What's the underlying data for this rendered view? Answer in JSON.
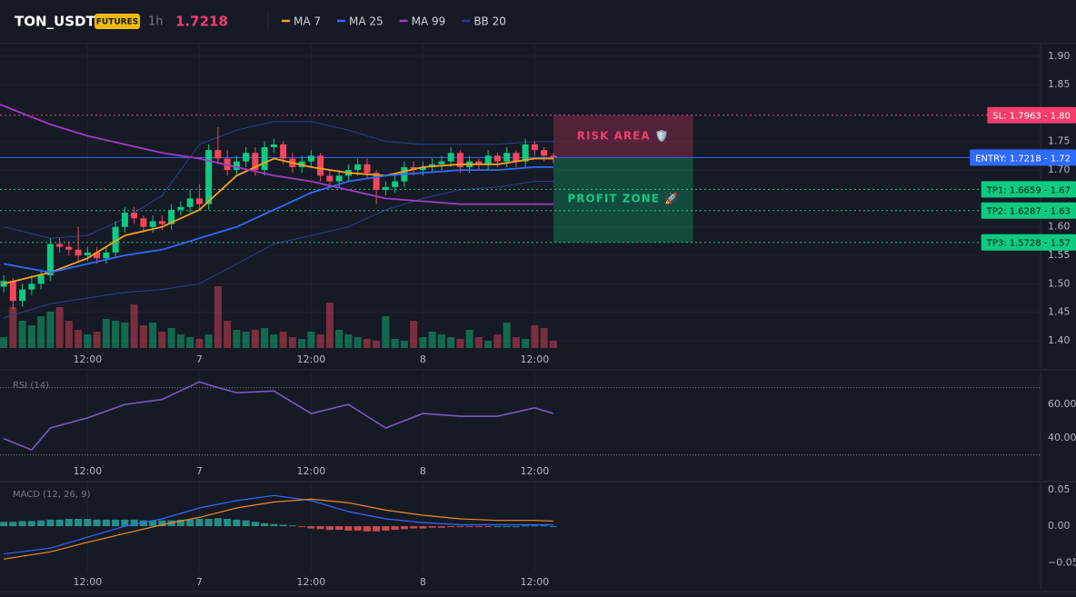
{
  "header": {
    "symbol": "TON_USDT",
    "badge": "FUTURES",
    "interval": "1h",
    "price": "1.7218"
  },
  "chart_data": [
    {
      "type": "candlestick",
      "xlim": [
        2.6,
        114.3
      ],
      "ylim": [
        1.384,
        1.922
      ],
      "xticks": [
        {
          "value": 12,
          "label": "12:00"
        },
        {
          "value": 24,
          "label": "7"
        },
        {
          "value": 36,
          "label": "12:00"
        },
        {
          "value": 48,
          "label": "8"
        },
        {
          "value": 60,
          "label": "12:00"
        }
      ],
      "yticks": [
        {
          "value": 1.9,
          "label": "1.90"
        },
        {
          "value": 1.85,
          "label": "1.85"
        },
        {
          "value": 1.75,
          "label": "1.75"
        },
        {
          "value": 1.7,
          "label": "1.70"
        },
        {
          "value": 1.6,
          "label": "1.60"
        },
        {
          "value": 1.55,
          "label": "1.55"
        },
        {
          "value": 1.5,
          "label": "1.50"
        },
        {
          "value": 1.45,
          "label": "1.45"
        },
        {
          "value": 1.4,
          "label": "1.40"
        }
      ],
      "grid": true,
      "up_color": "#0ecb81",
      "down_color": "#f6465d",
      "x": [
        3,
        4,
        5,
        6,
        7,
        8,
        9,
        10,
        11,
        12,
        13,
        14,
        15,
        16,
        17,
        18,
        19,
        20,
        21,
        22,
        23,
        24,
        25,
        26,
        27,
        28,
        29,
        30,
        31,
        32,
        33,
        34,
        35,
        36,
        37,
        38,
        39,
        40,
        41,
        42,
        43,
        44,
        45,
        46,
        47,
        48,
        49,
        50,
        51,
        52,
        53,
        54,
        55,
        56,
        57,
        58,
        59,
        60,
        61,
        62
      ],
      "open": [
        1.495,
        1.505,
        1.47,
        1.49,
        1.5,
        1.515,
        1.57,
        1.565,
        1.56,
        1.55,
        1.555,
        1.545,
        1.555,
        1.6,
        1.625,
        1.615,
        1.6,
        1.61,
        1.605,
        1.63,
        1.635,
        1.65,
        1.64,
        1.735,
        1.72,
        1.7,
        1.715,
        1.73,
        1.7,
        1.74,
        1.745,
        1.72,
        1.705,
        1.715,
        1.725,
        1.69,
        1.68,
        1.69,
        1.7,
        1.71,
        1.695,
        1.665,
        1.67,
        1.68,
        1.705,
        1.7,
        1.705,
        1.71,
        1.715,
        1.73,
        1.705,
        1.715,
        1.71,
        1.725,
        1.715,
        1.73,
        1.715,
        1.745,
        1.735,
        1.725
      ],
      "high": [
        1.515,
        1.51,
        1.5,
        1.515,
        1.525,
        1.58,
        1.58,
        1.575,
        1.6,
        1.565,
        1.565,
        1.565,
        1.61,
        1.635,
        1.635,
        1.62,
        1.62,
        1.62,
        1.64,
        1.645,
        1.665,
        1.675,
        1.745,
        1.775,
        1.735,
        1.725,
        1.74,
        1.74,
        1.75,
        1.755,
        1.75,
        1.73,
        1.725,
        1.735,
        1.73,
        1.7,
        1.7,
        1.71,
        1.72,
        1.72,
        1.7,
        1.68,
        1.69,
        1.715,
        1.715,
        1.715,
        1.72,
        1.725,
        1.74,
        1.735,
        1.725,
        1.72,
        1.735,
        1.73,
        1.74,
        1.735,
        1.755,
        1.75,
        1.74,
        1.73
      ],
      "low": [
        1.485,
        1.455,
        1.46,
        1.48,
        1.49,
        1.505,
        1.555,
        1.55,
        1.54,
        1.54,
        1.535,
        1.535,
        1.545,
        1.59,
        1.605,
        1.59,
        1.59,
        1.595,
        1.595,
        1.62,
        1.625,
        1.63,
        1.63,
        1.71,
        1.69,
        1.69,
        1.705,
        1.69,
        1.69,
        1.73,
        1.71,
        1.695,
        1.695,
        1.705,
        1.68,
        1.67,
        1.67,
        1.68,
        1.69,
        1.685,
        1.64,
        1.655,
        1.66,
        1.67,
        1.69,
        1.69,
        1.695,
        1.7,
        1.705,
        1.695,
        1.695,
        1.7,
        1.7,
        1.705,
        1.705,
        1.705,
        1.705,
        1.725,
        1.715,
        1.712
      ],
      "close": [
        1.505,
        1.47,
        1.49,
        1.5,
        1.515,
        1.57,
        1.565,
        1.56,
        1.55,
        1.555,
        1.545,
        1.555,
        1.6,
        1.625,
        1.615,
        1.6,
        1.61,
        1.605,
        1.63,
        1.635,
        1.65,
        1.64,
        1.735,
        1.72,
        1.7,
        1.715,
        1.73,
        1.7,
        1.74,
        1.745,
        1.72,
        1.705,
        1.715,
        1.725,
        1.69,
        1.68,
        1.69,
        1.7,
        1.71,
        1.695,
        1.665,
        1.67,
        1.68,
        1.705,
        1.7,
        1.705,
        1.71,
        1.715,
        1.73,
        1.705,
        1.715,
        1.71,
        1.725,
        1.715,
        1.73,
        1.715,
        1.745,
        1.735,
        1.725,
        1.722
      ],
      "volume": [
        12,
        45,
        30,
        25,
        35,
        40,
        45,
        30,
        20,
        15,
        18,
        32,
        30,
        28,
        48,
        25,
        28,
        18,
        22,
        15,
        12,
        10,
        15,
        68,
        30,
        20,
        18,
        20,
        22,
        15,
        18,
        12,
        10,
        18,
        15,
        50,
        20,
        15,
        12,
        10,
        8,
        35,
        10,
        8,
        30,
        12,
        18,
        15,
        12,
        10,
        20,
        12,
        8,
        15,
        28,
        12,
        10,
        25,
        22,
        8
      ],
      "overlays": [
        {
          "name": "MA 7",
          "color": "#f7a21b",
          "x": [
            3,
            8,
            12,
            16,
            20,
            24,
            28,
            32,
            36,
            40,
            44,
            48,
            52,
            56,
            60,
            62
          ],
          "values": [
            1.5,
            1.52,
            1.545,
            1.585,
            1.6,
            1.63,
            1.69,
            1.72,
            1.705,
            1.695,
            1.69,
            1.705,
            1.71,
            1.71,
            1.72,
            1.72
          ]
        },
        {
          "name": "MA 25",
          "color": "#2f6bff",
          "x": [
            3,
            8,
            12,
            16,
            20,
            24,
            28,
            32,
            36,
            40,
            44,
            48,
            52,
            56,
            60,
            62
          ],
          "values": [
            1.535,
            1.52,
            1.535,
            1.55,
            1.56,
            1.58,
            1.6,
            1.63,
            1.66,
            1.68,
            1.69,
            1.695,
            1.7,
            1.7,
            1.705,
            1.705
          ]
        },
        {
          "name": "MA 99",
          "color": "#a23cc6",
          "x": [
            2.6,
            8,
            12,
            16,
            20,
            24,
            28,
            32,
            36,
            40,
            44,
            48,
            52,
            56,
            60,
            62
          ],
          "values": [
            1.815,
            1.78,
            1.76,
            1.745,
            1.73,
            1.72,
            1.705,
            1.69,
            1.68,
            1.665,
            1.65,
            1.645,
            1.64,
            1.64,
            1.64,
            1.64
          ]
        }
      ],
      "bands": {
        "name": "BB 20",
        "color": "#2a3f8f",
        "x": [
          3,
          8,
          12,
          16,
          20,
          24,
          28,
          32,
          36,
          40,
          44,
          48,
          52,
          56,
          60,
          62
        ],
        "upper": [
          1.6,
          1.58,
          1.585,
          1.615,
          1.655,
          1.745,
          1.77,
          1.785,
          1.785,
          1.77,
          1.75,
          1.745,
          1.745,
          1.745,
          1.75,
          1.75
        ],
        "lower": [
          1.44,
          1.465,
          1.475,
          1.485,
          1.49,
          1.5,
          1.535,
          1.57,
          1.585,
          1.6,
          1.63,
          1.65,
          1.665,
          1.67,
          1.68,
          1.68
        ]
      },
      "levels": [
        {
          "label": "SL: 1.7963 - 1.80",
          "value": 1.7963,
          "color": "#f23d6d",
          "style": "dotted"
        },
        {
          "label": "ENTRY: 1.7218 - 1.72",
          "value": 1.7218,
          "color": "#2f6bff",
          "style": "solid"
        },
        {
          "label": "TP1: 1.6659 - 1.67",
          "value": 1.6659,
          "color": "#0ecb81",
          "style": "dotted"
        },
        {
          "label": "TP2: 1.6287 - 1.63",
          "value": 1.6287,
          "color": "#0ecb81",
          "style": "dotted"
        },
        {
          "label": "TP3: 1.5728 - 1.57",
          "value": 1.5728,
          "color": "#0ecb81",
          "style": "dotted"
        }
      ],
      "zones": [
        {
          "label": "RISK AREA 🛡️",
          "from": 1.7963,
          "to": 1.7218,
          "x_from": 62,
          "x_to": 77,
          "color": "#f23d6d"
        },
        {
          "label": "PROFIT ZONE 🚀",
          "from": 1.7218,
          "to": 1.5728,
          "x_from": 62,
          "x_to": 77,
          "color": "#0ecb81"
        }
      ]
    },
    {
      "type": "line",
      "title": "RSI (14)",
      "xlim": [
        2.6,
        114.3
      ],
      "ylim": [
        26,
        79
      ],
      "xticks": [
        {
          "value": 12,
          "label": "12:00"
        },
        {
          "value": 24,
          "label": "7"
        },
        {
          "value": 36,
          "label": "12:00"
        },
        {
          "value": 48,
          "label": "8"
        },
        {
          "value": 60,
          "label": "12:00"
        }
      ],
      "yticks": [
        {
          "value": 60,
          "label": "60.00"
        },
        {
          "value": 40,
          "label": "40.00"
        }
      ],
      "bands": [
        70,
        30
      ],
      "series": [
        {
          "color": "#7e57c2",
          "x": [
            3,
            6,
            8,
            12,
            16,
            20,
            24,
            26,
            28,
            32,
            36,
            40,
            44,
            48,
            52,
            56,
            60,
            62
          ],
          "values": [
            39.7,
            33,
            46,
            52,
            60,
            63,
            73.5,
            70,
            67,
            68,
            54.6,
            60,
            46,
            54.6,
            53,
            53,
            58,
            54.6
          ]
        }
      ]
    },
    {
      "type": "macd",
      "title": "MACD (12, 26, 9)",
      "xlim": [
        2.6,
        114.3
      ],
      "ylim": [
        -0.062,
        0.061
      ],
      "xticks": [
        {
          "value": 12,
          "label": "12:00"
        },
        {
          "value": 24,
          "label": "7"
        },
        {
          "value": 36,
          "label": "12:00"
        },
        {
          "value": 48,
          "label": "8"
        },
        {
          "value": 60,
          "label": "12:00"
        }
      ],
      "yticks": [
        {
          "value": 0.05,
          "label": "0.05"
        },
        {
          "value": 0,
          "label": "0.00"
        },
        {
          "value": -0.05,
          "label": "−0.05"
        }
      ],
      "x": [
        3,
        4,
        5,
        6,
        7,
        8,
        9,
        10,
        11,
        12,
        13,
        14,
        15,
        16,
        17,
        18,
        19,
        20,
        21,
        22,
        23,
        24,
        25,
        26,
        27,
        28,
        29,
        30,
        31,
        32,
        33,
        34,
        35,
        36,
        37,
        38,
        39,
        40,
        41,
        42,
        43,
        44,
        45,
        46,
        47,
        48,
        49,
        50,
        51,
        52,
        53,
        54,
        55,
        56,
        57,
        58,
        59,
        60,
        61,
        62
      ],
      "histogram": [
        0.006,
        0.006,
        0.007,
        0.007,
        0.008,
        0.009,
        0.009,
        0.01,
        0.01,
        0.01,
        0.009,
        0.009,
        0.009,
        0.009,
        0.009,
        0.008,
        0.008,
        0.008,
        0.008,
        0.009,
        0.009,
        0.01,
        0.01,
        0.011,
        0.01,
        0.009,
        0.008,
        0.006,
        0.004,
        0.003,
        0.002,
        0.001,
        -0.001,
        -0.003,
        -0.004,
        -0.005,
        -0.005,
        -0.006,
        -0.006,
        -0.007,
        -0.007,
        -0.006,
        -0.005,
        -0.004,
        -0.003,
        -0.003,
        -0.002,
        -0.002,
        -0.001,
        -0.001,
        -0.001,
        -0.001,
        -0.001,
        0,
        0,
        0,
        0.001,
        0.001,
        0.001,
        0
      ],
      "up_color": "#26a69a",
      "down_color": "#ef5350",
      "series": [
        {
          "color": "#2f6bff",
          "x": [
            3,
            8,
            12,
            16,
            20,
            24,
            28,
            32,
            36,
            40,
            44,
            48,
            52,
            56,
            60,
            62
          ],
          "values": [
            -0.038,
            -0.03,
            -0.015,
            0,
            0.01,
            0.025,
            0.035,
            0.042,
            0.035,
            0.02,
            0.01,
            0.005,
            0.002,
            0.002,
            0.002,
            0.002
          ]
        },
        {
          "color": "#f08c2a",
          "x": [
            3,
            8,
            12,
            16,
            20,
            24,
            28,
            32,
            36,
            40,
            44,
            48,
            52,
            56,
            60,
            62
          ],
          "values": [
            -0.045,
            -0.035,
            -0.022,
            -0.01,
            0.002,
            0.012,
            0.025,
            0.033,
            0.037,
            0.032,
            0.022,
            0.015,
            0.01,
            0.008,
            0.008,
            0.007
          ]
        }
      ]
    }
  ]
}
